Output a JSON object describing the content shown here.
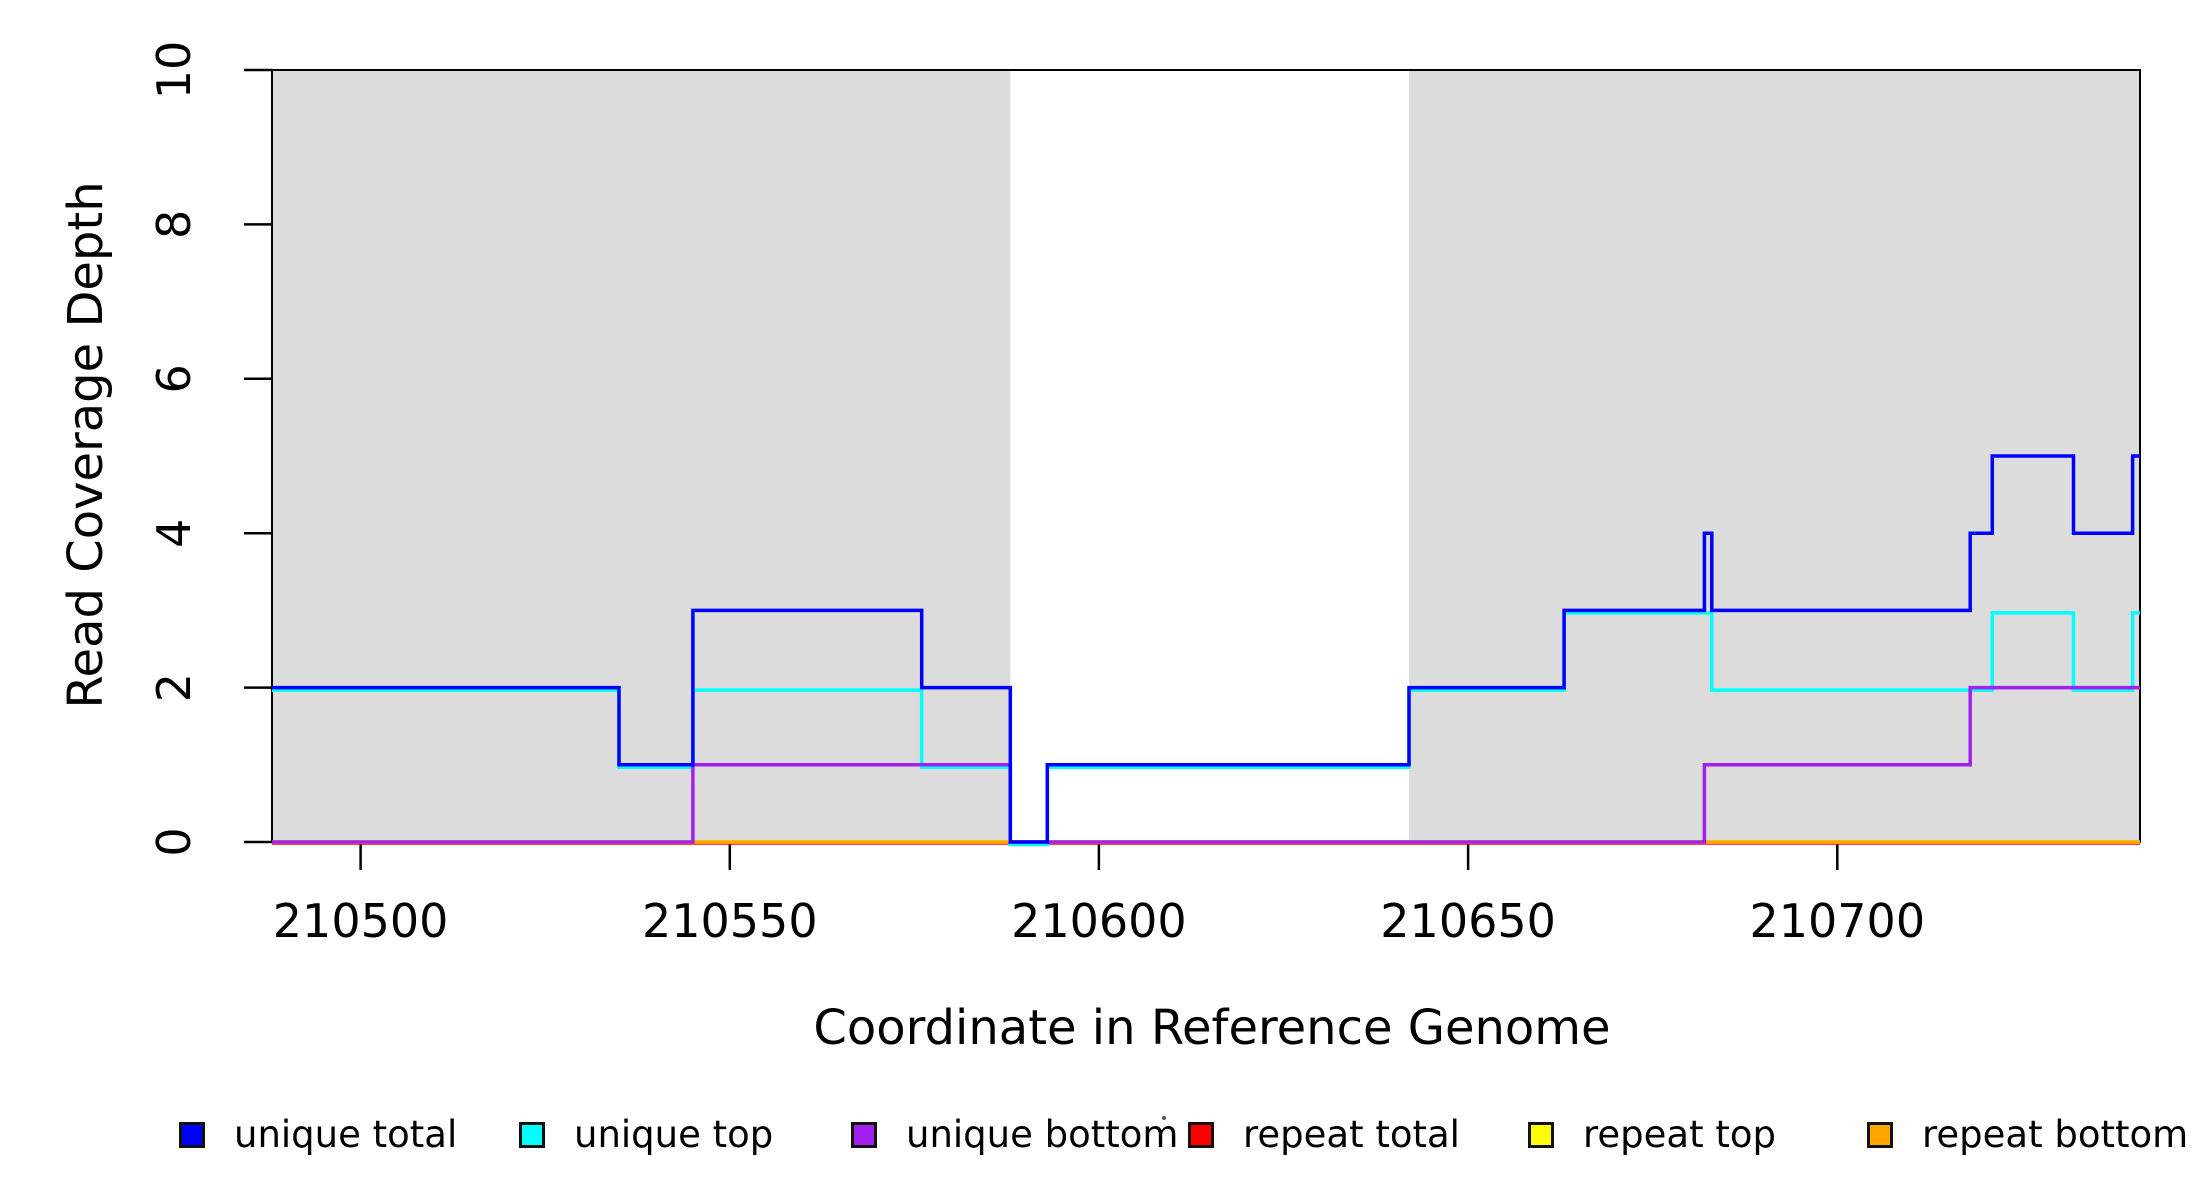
{
  "chart_data": {
    "type": "line",
    "subtype": "step-coverage",
    "title": "",
    "xlabel": "Coordinate in Reference Genome",
    "ylabel": "Read Coverage Depth",
    "xlim": [
      210488,
      210741
    ],
    "ylim": [
      0,
      10
    ],
    "x_ticks": [
      210500,
      210550,
      210600,
      210650,
      210700
    ],
    "y_ticks": [
      0,
      2,
      4,
      6,
      8,
      10
    ],
    "grid": false,
    "legend_position": "bottom",
    "shaded_regions": [
      {
        "x_start": 210488,
        "x_end": 210588,
        "color": "#DCDCDC"
      },
      {
        "x_start": 210642,
        "x_end": 210741,
        "color": "#DCDCDC"
      }
    ],
    "series": [
      {
        "name": "unique total",
        "color": "#0000FF",
        "steps": [
          [
            210488,
            2
          ],
          [
            210535,
            1
          ],
          [
            210545,
            3
          ],
          [
            210576,
            2
          ],
          [
            210588,
            0
          ],
          [
            210593,
            1
          ],
          [
            210642,
            2
          ],
          [
            210663,
            3
          ],
          [
            210682,
            4
          ],
          [
            210683,
            3
          ],
          [
            210718,
            4
          ],
          [
            210721,
            5
          ],
          [
            210732,
            4
          ],
          [
            210740,
            5
          ]
        ],
        "x_end": 210741
      },
      {
        "name": "unique top",
        "color": "#00FFFF",
        "steps": [
          [
            210488,
            2
          ],
          [
            210535,
            1
          ],
          [
            210545,
            2
          ],
          [
            210576,
            1
          ],
          [
            210588,
            0
          ],
          [
            210593,
            1
          ],
          [
            210642,
            2
          ],
          [
            210663,
            3
          ],
          [
            210683,
            2
          ],
          [
            210721,
            3
          ],
          [
            210732,
            2
          ],
          [
            210740,
            3
          ]
        ],
        "x_end": 210741
      },
      {
        "name": "unique bottom",
        "color": "#A020F0",
        "steps": [
          [
            210488,
            0
          ],
          [
            210545,
            1
          ],
          [
            210588,
            0
          ],
          [
            210682,
            1
          ],
          [
            210718,
            2
          ]
        ],
        "x_end": 210741
      },
      {
        "name": "repeat total",
        "color": "#FF0000",
        "steps": [
          [
            210488,
            0
          ]
        ],
        "x_end": 210741
      },
      {
        "name": "repeat top",
        "color": "#FFFF00",
        "steps": [
          [
            210488,
            0
          ]
        ],
        "x_end": 210741
      },
      {
        "name": "repeat bottom",
        "color": "#FFA500",
        "steps": [
          [
            210488,
            0
          ]
        ],
        "x_end": 210741
      }
    ]
  },
  "legend": {
    "items": [
      {
        "label": "unique total",
        "color": "#0000FF"
      },
      {
        "label": "unique top",
        "color": "#00FFFF"
      },
      {
        "label": "unique bottom",
        "color": "#A020F0"
      },
      {
        "label": "repeat total",
        "color": "#FF0000"
      },
      {
        "label": "repeat top",
        "color": "#FFFF00"
      },
      {
        "label": "repeat bottom",
        "color": "#FFA500"
      }
    ]
  }
}
